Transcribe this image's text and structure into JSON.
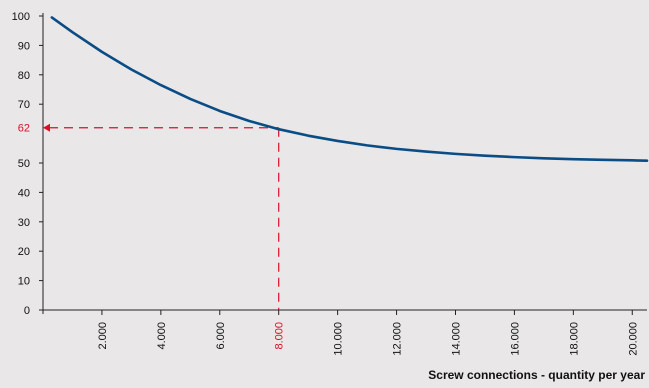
{
  "chart_data": {
    "type": "line",
    "title": "",
    "xlabel": "Screw connections - quantity per year",
    "ylabel": "",
    "xlim": [
      0,
      20500
    ],
    "ylim": [
      0,
      100
    ],
    "y_ticks": [
      "0",
      "10",
      "20",
      "30",
      "40",
      "50",
      "62",
      "70",
      "80",
      "90",
      "100"
    ],
    "y_tick_values": [
      0,
      10,
      20,
      30,
      40,
      50,
      62,
      70,
      80,
      90,
      100
    ],
    "x_ticks": [
      "2.000",
      "4.000",
      "6.000",
      "8.000",
      "10.000",
      "12.000",
      "14.000",
      "16.000",
      "18.000",
      "20.000"
    ],
    "x_tick_values": [
      2000,
      4000,
      6000,
      8000,
      10000,
      12000,
      14000,
      16000,
      18000,
      20000
    ],
    "series": [
      {
        "x": [
          300,
          1000,
          2000,
          3000,
          4000,
          5000,
          6000,
          7000,
          8000,
          9000,
          10000,
          11000,
          12000,
          13000,
          14000,
          15000,
          16000,
          17000,
          18000,
          19000,
          20000,
          20500
        ],
        "y": [
          99.5,
          94.5,
          87.8,
          81.8,
          76.5,
          71.8,
          67.7,
          64.3,
          61.5,
          59.3,
          57.5,
          56.0,
          54.8,
          53.9,
          53.1,
          52.5,
          52.0,
          51.6,
          51.3,
          51.1,
          50.9,
          50.8
        ],
        "color": "#0a4c86"
      }
    ],
    "annotations": [
      {
        "x": 8000,
        "y": 62,
        "x_label": "8.000",
        "y_label": "62",
        "color": "#d9102a"
      }
    ],
    "grid": false,
    "legend": "none",
    "axis_color": "#222222",
    "highlight_color": "#d9102a"
  }
}
